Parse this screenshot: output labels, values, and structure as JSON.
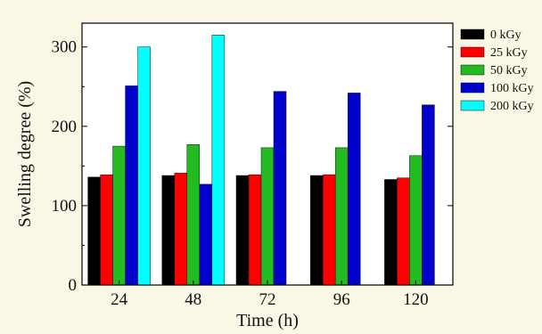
{
  "chart_data": {
    "type": "bar",
    "categories": [
      "24",
      "48",
      "72",
      "96",
      "120"
    ],
    "series": [
      {
        "name": "0 kGy",
        "color": "#000000",
        "values": [
          136,
          138,
          138,
          138,
          133
        ]
      },
      {
        "name": "25 kGy",
        "color": "#ff0000",
        "values": [
          139,
          141,
          139,
          139,
          135
        ]
      },
      {
        "name": "50 kGy",
        "color": "#22bb22",
        "values": [
          175,
          177,
          173,
          173,
          163
        ]
      },
      {
        "name": "100 kGy",
        "color": "#0000cc",
        "values": [
          251,
          127,
          244,
          242,
          227
        ]
      },
      {
        "name": "200 kGy",
        "color": "#00ffff",
        "values": [
          300,
          315,
          null,
          null,
          null
        ]
      }
    ],
    "xlabel": "Time (h)",
    "ylabel": "Swelling degree (%)",
    "ylim": [
      0,
      330
    ],
    "yticks": [
      "0",
      "100",
      "200",
      "300"
    ],
    "grid": false,
    "legend_position": "right"
  },
  "theme": {
    "background": "#fbf7e6",
    "plot_background": "#ffffff"
  }
}
